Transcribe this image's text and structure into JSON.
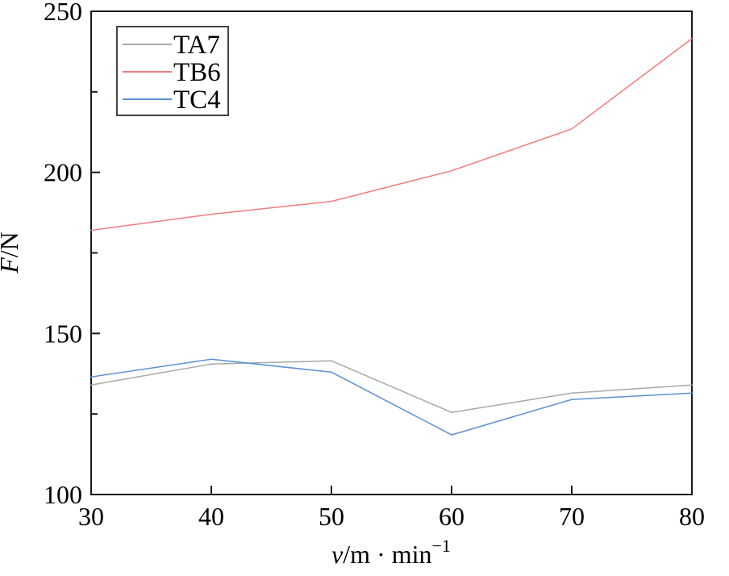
{
  "figure": {
    "background": "#ffffff",
    "frame_color": "#1a1a1a"
  },
  "chart_data": {
    "type": "line",
    "title": "",
    "x": [
      30,
      40,
      50,
      60,
      70,
      80
    ],
    "xlabel": "v/m·min⁻¹",
    "xlabel_parts": {
      "variable": "v",
      "rest": "/m · min",
      "superscript": "−1"
    },
    "ylabel": "F/N",
    "ylabel_parts": {
      "variable": "F",
      "rest": "/N"
    },
    "xlim": [
      30,
      80
    ],
    "ylim": [
      100,
      250
    ],
    "x_ticks": [
      30,
      40,
      50,
      60,
      70,
      80
    ],
    "y_ticks": [
      100,
      150,
      200,
      250
    ],
    "y_minor_ticks": [
      125,
      175,
      225
    ],
    "grid": false,
    "legend": {
      "position": "top-left",
      "border_color": "#444444",
      "background": "#ffffff"
    },
    "series": [
      {
        "name": "TA7",
        "color": "#a8a8a8",
        "values": [
          134,
          140.5,
          141.5,
          125.5,
          131.5,
          134
        ]
      },
      {
        "name": "TB6",
        "color": "#f07d7d",
        "values": [
          182,
          187,
          191,
          200.5,
          213.5,
          241.5
        ]
      },
      {
        "name": "TC4",
        "color": "#5b90d5",
        "values": [
          136.5,
          142,
          138,
          118.5,
          129.5,
          131.5
        ]
      }
    ]
  }
}
